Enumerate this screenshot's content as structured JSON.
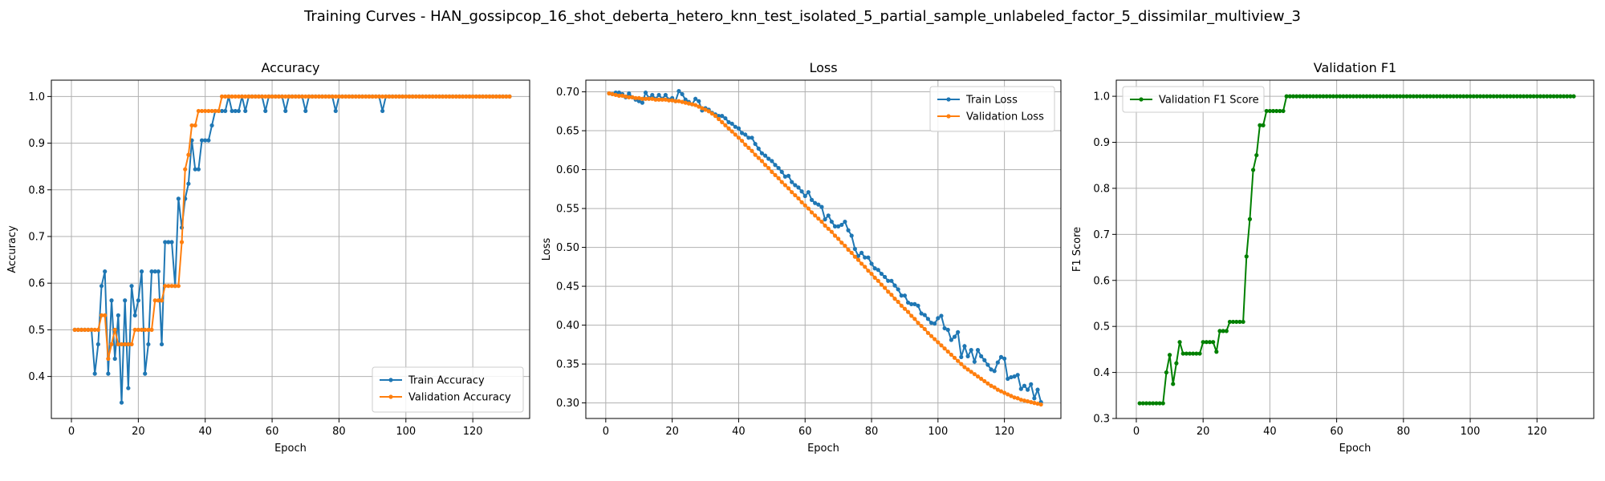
{
  "figure": {
    "title": "Training Curves - HAN_gossipcop_16_shot_deberta_hetero_knn_test_isolated_5_partial_sample_unlabeled_factor_5_dissimilar_multiview_3"
  },
  "colors": {
    "train": "#1f77b4",
    "validation": "#ff7f0e",
    "f1": "#008000",
    "grid": "#b0b0b0"
  },
  "chart_data": [
    {
      "type": "line",
      "title": "Accuracy",
      "xlabel": "Epoch",
      "ylabel": "Accuracy",
      "xlim": [
        -6,
        137
      ],
      "ylim": [
        0.31,
        1.035
      ],
      "xticks": [
        0,
        20,
        40,
        60,
        80,
        100,
        120
      ],
      "yticks": [
        0.4,
        0.5,
        0.6,
        0.7,
        0.8,
        0.9,
        1.0
      ],
      "ytick_labels": [
        "0.4",
        "0.5",
        "0.6",
        "0.7",
        "0.8",
        "0.9",
        "1.0"
      ],
      "grid": true,
      "legend_position": "lower-right",
      "x_start": 1,
      "series": [
        {
          "name": "Train Accuracy",
          "color": "#1f77b4",
          "values": [
            0.5,
            0.5,
            0.5,
            0.5,
            0.5,
            0.5,
            0.406,
            0.469,
            0.594,
            0.625,
            0.406,
            0.563,
            0.438,
            0.531,
            0.344,
            0.563,
            0.375,
            0.594,
            0.531,
            0.563,
            0.625,
            0.406,
            0.469,
            0.625,
            0.625,
            0.625,
            0.469,
            0.688,
            0.688,
            0.688,
            0.594,
            0.781,
            0.719,
            0.781,
            0.813,
            0.906,
            0.844,
            0.844,
            0.906,
            0.906,
            0.906,
            0.938,
            0.969,
            0.969,
            0.969,
            0.969,
            1.0,
            0.969,
            0.969,
            0.969,
            1.0,
            0.969,
            1.0,
            1.0,
            1.0,
            1.0,
            1.0,
            0.969,
            1.0,
            1.0,
            1.0,
            1.0,
            1.0,
            0.969,
            1.0,
            1.0,
            1.0,
            1.0,
            1.0,
            0.969,
            1.0,
            1.0,
            1.0,
            1.0,
            1.0,
            1.0,
            1.0,
            1.0,
            0.969,
            1.0,
            1.0,
            1.0,
            1.0,
            1.0,
            1.0,
            1.0,
            1.0,
            1.0,
            1.0,
            1.0,
            1.0,
            1.0,
            0.969,
            1.0,
            1.0,
            1.0,
            1.0,
            1.0,
            1.0,
            1.0,
            1.0,
            1.0,
            1.0,
            1.0,
            1.0,
            1.0,
            1.0,
            1.0,
            1.0,
            1.0,
            1.0,
            1.0,
            1.0,
            1.0,
            1.0,
            1.0,
            1.0,
            1.0,
            1.0,
            1.0,
            1.0,
            1.0,
            1.0,
            1.0,
            1.0,
            1.0,
            1.0,
            1.0,
            1.0,
            1.0,
            1.0
          ]
        },
        {
          "name": "Validation Accuracy",
          "color": "#ff7f0e",
          "values": [
            0.5,
            0.5,
            0.5,
            0.5,
            0.5,
            0.5,
            0.5,
            0.5,
            0.531,
            0.531,
            0.438,
            0.469,
            0.5,
            0.469,
            0.469,
            0.469,
            0.469,
            0.469,
            0.5,
            0.5,
            0.5,
            0.5,
            0.5,
            0.5,
            0.563,
            0.563,
            0.563,
            0.594,
            0.594,
            0.594,
            0.594,
            0.594,
            0.688,
            0.844,
            0.875,
            0.938,
            0.938,
            0.969,
            0.969,
            0.969,
            0.969,
            0.969,
            0.969,
            0.969,
            1.0,
            1.0,
            1.0,
            1.0,
            1.0,
            1.0,
            1.0,
            1.0,
            1.0,
            1.0,
            1.0,
            1.0,
            1.0,
            1.0,
            1.0,
            1.0,
            1.0,
            1.0,
            1.0,
            1.0,
            1.0,
            1.0,
            1.0,
            1.0,
            1.0,
            1.0,
            1.0,
            1.0,
            1.0,
            1.0,
            1.0,
            1.0,
            1.0,
            1.0,
            1.0,
            1.0,
            1.0,
            1.0,
            1.0,
            1.0,
            1.0,
            1.0,
            1.0,
            1.0,
            1.0,
            1.0,
            1.0,
            1.0,
            1.0,
            1.0,
            1.0,
            1.0,
            1.0,
            1.0,
            1.0,
            1.0,
            1.0,
            1.0,
            1.0,
            1.0,
            1.0,
            1.0,
            1.0,
            1.0,
            1.0,
            1.0,
            1.0,
            1.0,
            1.0,
            1.0,
            1.0,
            1.0,
            1.0,
            1.0,
            1.0,
            1.0,
            1.0,
            1.0,
            1.0,
            1.0,
            1.0,
            1.0,
            1.0,
            1.0,
            1.0,
            1.0,
            1.0
          ]
        }
      ]
    },
    {
      "type": "line",
      "title": "Loss",
      "xlabel": "Epoch",
      "ylabel": "Loss",
      "xlim": [
        -6,
        137
      ],
      "ylim": [
        0.28,
        0.715
      ],
      "xticks": [
        0,
        20,
        40,
        60,
        80,
        100,
        120
      ],
      "yticks": [
        0.3,
        0.35,
        0.4,
        0.45,
        0.5,
        0.55,
        0.6,
        0.65,
        0.7
      ],
      "ytick_labels": [
        "0.30",
        "0.35",
        "0.40",
        "0.45",
        "0.50",
        "0.55",
        "0.60",
        "0.65",
        "0.70"
      ],
      "grid": true,
      "legend_position": "upper-right",
      "x_start": 1,
      "series": [
        {
          "name": "Train Loss",
          "color": "#1f77b4",
          "values": [
            0.698,
            0.697,
            0.699,
            0.699,
            0.697,
            0.693,
            0.698,
            0.693,
            0.69,
            0.688,
            0.686,
            0.699,
            0.692,
            0.696,
            0.691,
            0.696,
            0.691,
            0.696,
            0.69,
            0.692,
            0.688,
            0.701,
            0.697,
            0.69,
            0.687,
            0.684,
            0.691,
            0.688,
            0.676,
            0.679,
            0.677,
            0.673,
            0.671,
            0.669,
            0.669,
            0.666,
            0.661,
            0.659,
            0.655,
            0.653,
            0.647,
            0.645,
            0.641,
            0.641,
            0.633,
            0.627,
            0.621,
            0.618,
            0.614,
            0.611,
            0.606,
            0.602,
            0.597,
            0.591,
            0.592,
            0.584,
            0.58,
            0.577,
            0.572,
            0.566,
            0.571,
            0.561,
            0.557,
            0.555,
            0.552,
            0.536,
            0.541,
            0.533,
            0.527,
            0.527,
            0.529,
            0.533,
            0.522,
            0.515,
            0.498,
            0.489,
            0.493,
            0.487,
            0.487,
            0.479,
            0.473,
            0.471,
            0.466,
            0.462,
            0.457,
            0.457,
            0.451,
            0.446,
            0.438,
            0.438,
            0.429,
            0.427,
            0.427,
            0.425,
            0.415,
            0.413,
            0.408,
            0.403,
            0.402,
            0.409,
            0.412,
            0.396,
            0.394,
            0.381,
            0.385,
            0.391,
            0.359,
            0.373,
            0.36,
            0.368,
            0.353,
            0.368,
            0.36,
            0.355,
            0.349,
            0.343,
            0.341,
            0.352,
            0.359,
            0.357,
            0.331,
            0.333,
            0.334,
            0.336,
            0.318,
            0.322,
            0.317,
            0.324,
            0.306,
            0.317,
            0.301
          ]
        },
        {
          "name": "Validation Loss",
          "color": "#ff7f0e",
          "values": [
            0.698,
            0.697,
            0.696,
            0.695,
            0.695,
            0.694,
            0.693,
            0.693,
            0.692,
            0.692,
            0.691,
            0.691,
            0.691,
            0.691,
            0.69,
            0.69,
            0.69,
            0.69,
            0.689,
            0.689,
            0.688,
            0.688,
            0.687,
            0.686,
            0.685,
            0.684,
            0.683,
            0.681,
            0.679,
            0.677,
            0.675,
            0.672,
            0.669,
            0.665,
            0.661,
            0.657,
            0.653,
            0.649,
            0.645,
            0.641,
            0.637,
            0.632,
            0.628,
            0.624,
            0.619,
            0.615,
            0.611,
            0.606,
            0.602,
            0.597,
            0.593,
            0.589,
            0.584,
            0.58,
            0.576,
            0.571,
            0.567,
            0.563,
            0.558,
            0.554,
            0.55,
            0.545,
            0.541,
            0.537,
            0.533,
            0.528,
            0.524,
            0.52,
            0.515,
            0.511,
            0.506,
            0.502,
            0.497,
            0.493,
            0.488,
            0.484,
            0.479,
            0.475,
            0.47,
            0.466,
            0.461,
            0.457,
            0.452,
            0.448,
            0.443,
            0.439,
            0.434,
            0.43,
            0.425,
            0.421,
            0.417,
            0.412,
            0.408,
            0.403,
            0.399,
            0.395,
            0.39,
            0.386,
            0.382,
            0.378,
            0.374,
            0.37,
            0.366,
            0.362,
            0.358,
            0.354,
            0.35,
            0.346,
            0.343,
            0.34,
            0.337,
            0.334,
            0.331,
            0.328,
            0.325,
            0.322,
            0.32,
            0.317,
            0.315,
            0.313,
            0.311,
            0.309,
            0.307,
            0.306,
            0.304,
            0.303,
            0.302,
            0.301,
            0.3,
            0.299,
            0.298
          ]
        }
      ]
    },
    {
      "type": "line",
      "title": "Validation F1",
      "xlabel": "Epoch",
      "ylabel": "F1 Score",
      "xlim": [
        -6,
        137
      ],
      "ylim": [
        0.3,
        1.035
      ],
      "xticks": [
        0,
        20,
        40,
        60,
        80,
        100,
        120
      ],
      "yticks": [
        0.3,
        0.4,
        0.5,
        0.6,
        0.7,
        0.8,
        0.9,
        1.0
      ],
      "ytick_labels": [
        "0.3",
        "0.4",
        "0.5",
        "0.6",
        "0.7",
        "0.8",
        "0.9",
        "1.0"
      ],
      "grid": true,
      "legend_position": "upper-left",
      "x_start": 1,
      "series": [
        {
          "name": "Validation F1 Score",
          "color": "#008000",
          "values": [
            0.333,
            0.333,
            0.333,
            0.333,
            0.333,
            0.333,
            0.333,
            0.333,
            0.4,
            0.438,
            0.375,
            0.42,
            0.466,
            0.441,
            0.441,
            0.441,
            0.441,
            0.441,
            0.441,
            0.466,
            0.466,
            0.466,
            0.466,
            0.445,
            0.49,
            0.49,
            0.49,
            0.51,
            0.51,
            0.51,
            0.51,
            0.51,
            0.652,
            0.733,
            0.84,
            0.872,
            0.937,
            0.937,
            0.968,
            0.968,
            0.968,
            0.968,
            0.968,
            0.968,
            1.0,
            1.0,
            1.0,
            1.0,
            1.0,
            1.0,
            1.0,
            1.0,
            1.0,
            1.0,
            1.0,
            1.0,
            1.0,
            1.0,
            1.0,
            1.0,
            1.0,
            1.0,
            1.0,
            1.0,
            1.0,
            1.0,
            1.0,
            1.0,
            1.0,
            1.0,
            1.0,
            1.0,
            1.0,
            1.0,
            1.0,
            1.0,
            1.0,
            1.0,
            1.0,
            1.0,
            1.0,
            1.0,
            1.0,
            1.0,
            1.0,
            1.0,
            1.0,
            1.0,
            1.0,
            1.0,
            1.0,
            1.0,
            1.0,
            1.0,
            1.0,
            1.0,
            1.0,
            1.0,
            1.0,
            1.0,
            1.0,
            1.0,
            1.0,
            1.0,
            1.0,
            1.0,
            1.0,
            1.0,
            1.0,
            1.0,
            1.0,
            1.0,
            1.0,
            1.0,
            1.0,
            1.0,
            1.0,
            1.0,
            1.0,
            1.0,
            1.0,
            1.0,
            1.0,
            1.0,
            1.0,
            1.0,
            1.0,
            1.0,
            1.0,
            1.0,
            1.0
          ]
        }
      ]
    }
  ]
}
